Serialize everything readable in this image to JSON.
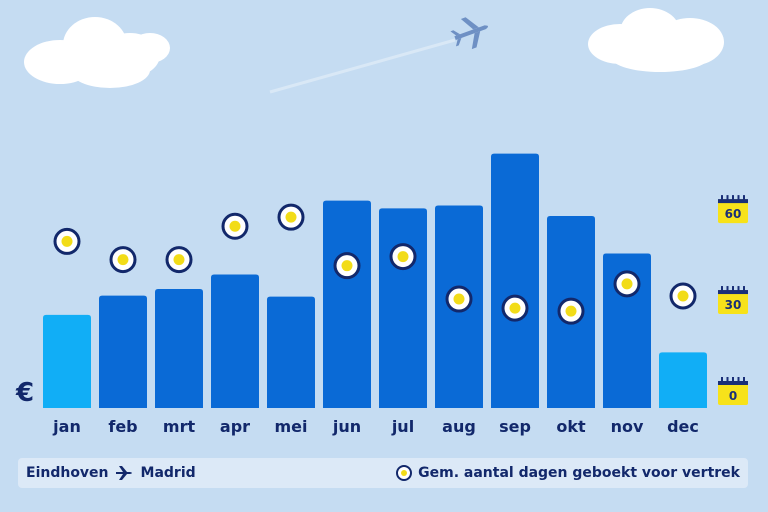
{
  "colors": {
    "background": "#c5dcf2",
    "bar_dark": "#0a6ad6",
    "bar_light": "#11aef6",
    "marker_ring": "#12286b",
    "marker_fill": "#f2dc18",
    "axis_text": "#12286b",
    "badge": "#f7e21a"
  },
  "icons": [
    "cloud-icon",
    "airplane-icon",
    "calendar-icon",
    "euro-icon",
    "route-plane-icon"
  ],
  "currency_symbol": "€",
  "footer": {
    "origin": "Eindhoven",
    "destination": "Madrid",
    "legend_label": "Gem. aantal dagen geboekt voor vertrek"
  },
  "chart_data": {
    "type": "bar",
    "categories": [
      "jan",
      "feb",
      "mrt",
      "apr",
      "mei",
      "jun",
      "jul",
      "aug",
      "sep",
      "okt",
      "nov",
      "dec"
    ],
    "series": [
      {
        "kind": "bar",
        "values": [
          97,
          117,
          124,
          139,
          116,
          216,
          208,
          211,
          265,
          200,
          161,
          58
        ],
        "highlight": [
          true,
          false,
          false,
          false,
          false,
          false,
          false,
          false,
          false,
          false,
          false,
          true
        ]
      },
      {
        "name": "Gem. aantal dagen geboekt voor vertrek",
        "kind": "marker",
        "axis": "right",
        "values": [
          50,
          44,
          44,
          55,
          58,
          42,
          45,
          31,
          28,
          27,
          36,
          32
        ]
      }
    ],
    "right_axis": {
      "ticks": [
        0,
        30,
        60
      ],
      "ylim": [
        0,
        95
      ]
    },
    "left_axis": {
      "ylim": [
        0,
        300
      ]
    },
    "xlabel": "",
    "ylabel": ""
  }
}
